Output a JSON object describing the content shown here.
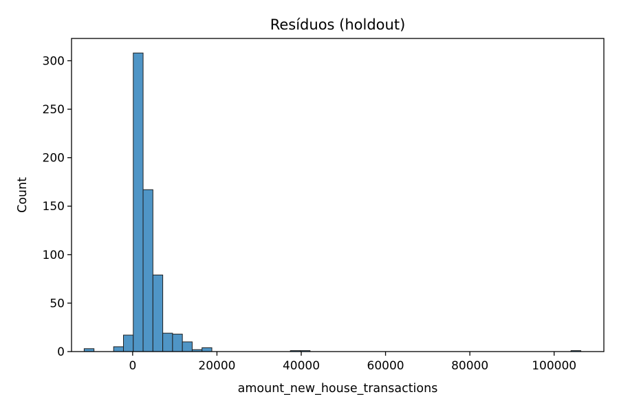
{
  "chart_data": {
    "type": "bar",
    "title": "Resíduos (holdout)",
    "xlabel": "amount_new_house_transactions",
    "ylabel": "Count",
    "xlim": [
      -14500,
      111800
    ],
    "ylim": [
      0,
      323
    ],
    "xticks": [
      0,
      20000,
      40000,
      60000,
      80000,
      100000
    ],
    "xtick_labels": [
      "0",
      "20000",
      "40000",
      "60000",
      "80000",
      "100000"
    ],
    "yticks": [
      0,
      50,
      100,
      150,
      200,
      250,
      300
    ],
    "ytick_labels": [
      "0",
      "50",
      "100",
      "150",
      "200",
      "250",
      "300"
    ],
    "grid": false,
    "bin_width": 2330,
    "bins": [
      {
        "x0": -11500,
        "count": 3
      },
      {
        "x0": -9170,
        "count": 0
      },
      {
        "x0": -6840,
        "count": 0
      },
      {
        "x0": -4510,
        "count": 5
      },
      {
        "x0": -2180,
        "count": 17
      },
      {
        "x0": 150,
        "count": 308
      },
      {
        "x0": 2480,
        "count": 167
      },
      {
        "x0": 4810,
        "count": 79
      },
      {
        "x0": 7140,
        "count": 19
      },
      {
        "x0": 9470,
        "count": 18
      },
      {
        "x0": 11800,
        "count": 10
      },
      {
        "x0": 14130,
        "count": 2
      },
      {
        "x0": 16460,
        "count": 4
      },
      {
        "x0": 18790,
        "count": 0
      },
      {
        "x0": 21120,
        "count": 0
      },
      {
        "x0": 23450,
        "count": 0
      },
      {
        "x0": 25780,
        "count": 0
      },
      {
        "x0": 28110,
        "count": 0
      },
      {
        "x0": 30440,
        "count": 0
      },
      {
        "x0": 32770,
        "count": 0
      },
      {
        "x0": 35100,
        "count": 0
      },
      {
        "x0": 37430,
        "count": 1
      },
      {
        "x0": 39760,
        "count": 1
      }
    ],
    "outlier_bins": [
      {
        "x0": 104000,
        "count": 1
      }
    ]
  }
}
